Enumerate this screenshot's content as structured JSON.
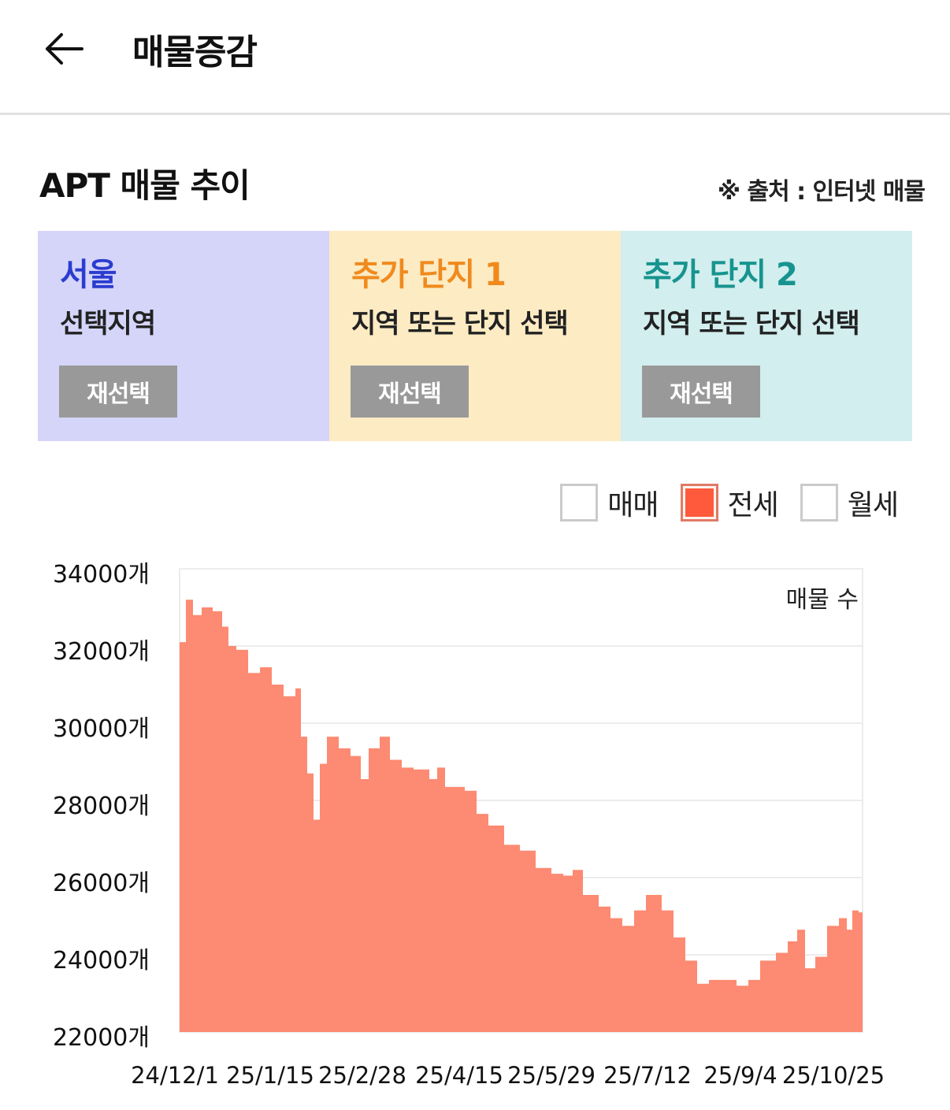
{
  "header": {
    "title": "매물증감",
    "back_icon": "arrow-left-icon"
  },
  "section": {
    "title": "APT 매물 추이",
    "source": "※ 출처 : 인터넷 매물"
  },
  "panels": [
    {
      "title": "서울",
      "subtitle": "선택지역",
      "button": "재선택",
      "bg": "#d5d5fa",
      "title_color": "#2b3ccf"
    },
    {
      "title": "추가 단지 1",
      "subtitle": "지역 또는 단지 선택",
      "button": "재선택",
      "bg": "#fdebc3",
      "title_color": "#f08a1e"
    },
    {
      "title": "추가 단지 2",
      "subtitle": "지역 또는 단지 선택",
      "button": "재선택",
      "bg": "#d2eeee",
      "title_color": "#17948f"
    }
  ],
  "legend": [
    {
      "label": "매매",
      "checked": false
    },
    {
      "label": "전세",
      "checked": true,
      "color": "#ff5a3c"
    },
    {
      "label": "월세",
      "checked": false
    }
  ],
  "chart_data": {
    "type": "area",
    "title": "APT 매물 추이",
    "series_label": "매물 수",
    "xlabel": "",
    "ylabel": "",
    "ylim": [
      22000,
      34000
    ],
    "y_ticks": [
      "34000개",
      "32000개",
      "30000개",
      "28000개",
      "26000개",
      "24000개",
      "22000개"
    ],
    "x_ticks": [
      "24/12/1",
      "25/1/15",
      "25/2/28",
      "25/4/15",
      "25/5/29",
      "25/7/12",
      "25/9/4",
      "25/10/25"
    ],
    "grid": true,
    "fill_color": "#fd8a72",
    "series": [
      {
        "name": "전세",
        "values": [
          32100,
          33200,
          32800,
          33000,
          32900,
          32500,
          32000,
          31900,
          31300,
          31450,
          31000,
          30700,
          30900,
          29650,
          28700,
          27500,
          28950,
          29650,
          29350,
          29150,
          28550,
          29350,
          29650,
          29050,
          28850,
          28800,
          28550,
          28850,
          28350,
          28250,
          27650,
          27350,
          26850,
          26700,
          26250,
          26100,
          26050,
          26200,
          25550,
          25250,
          24950,
          24750,
          25150,
          25550,
          25150,
          24450,
          23850,
          23250,
          23350,
          23350,
          23200,
          23350,
          23850,
          24050,
          24350,
          24650,
          23650,
          23950,
          24750,
          24950,
          24650,
          25150,
          25100,
          25950
        ]
      },
      {
        "name": "x_px",
        "values": [
          228,
          236,
          245,
          256,
          270,
          282,
          290,
          300,
          315,
          330,
          345,
          360,
          375,
          382,
          390,
          398,
          406,
          415,
          430,
          445,
          458,
          468,
          482,
          495,
          510,
          525,
          545,
          555,
          565,
          590,
          605,
          620,
          640,
          660,
          680,
          700,
          715,
          727,
          740,
          760,
          775,
          790,
          805,
          820,
          840,
          855,
          870,
          885,
          900,
          915,
          935,
          950,
          965,
          985,
          1000,
          1012,
          1022,
          1035,
          1050,
          1065,
          1075,
          1082,
          1090,
          1095
        ]
      }
    ]
  }
}
